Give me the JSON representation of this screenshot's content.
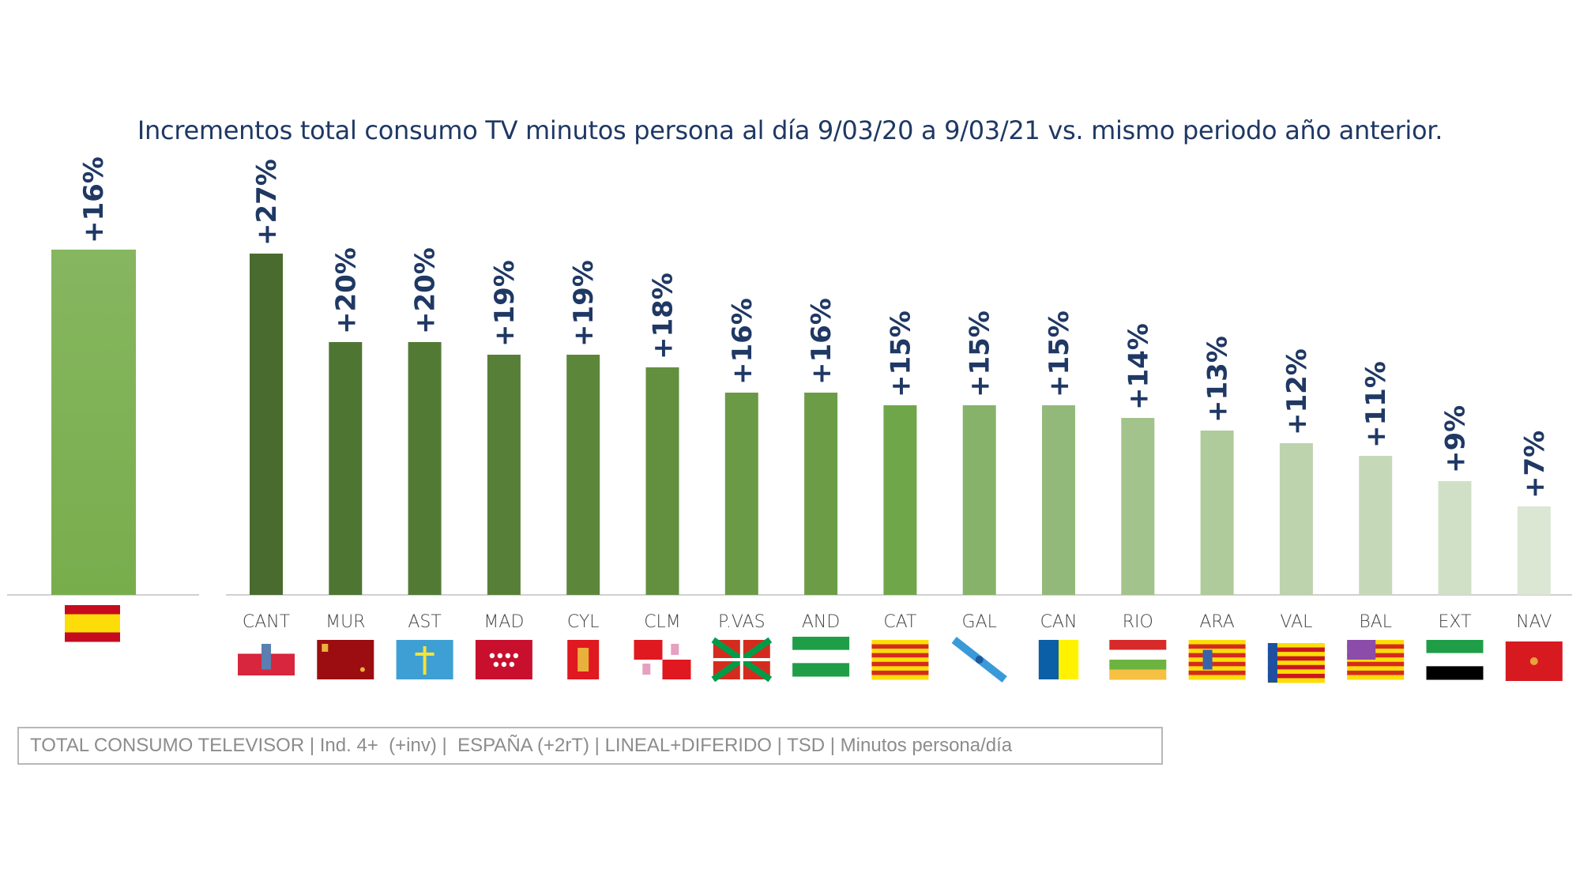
{
  "chart_data": {
    "type": "bar",
    "title": "Incrementos total consumo TV minutos persona al día 9/03/20 a 9/03/21 vs. mismo periodo año anterior.",
    "total": {
      "category": "ESPAÑA",
      "value": 16,
      "label": "+16%",
      "color": "#78ad4c"
    },
    "categories": [
      "CANT",
      "MUR",
      "AST",
      "MAD",
      "CYL",
      "CLM",
      "P.VAS",
      "AND",
      "CAT",
      "GAL",
      "CAN",
      "RIO",
      "ARA",
      "VAL",
      "BAL",
      "EXT",
      "NAV"
    ],
    "values": [
      27,
      20,
      20,
      19,
      19,
      18,
      16,
      16,
      15,
      15,
      15,
      14,
      13,
      12,
      11,
      9,
      7
    ],
    "labels": [
      "+27%",
      "+20%",
      "+20%",
      "+19%",
      "+19%",
      "+18%",
      "+16%",
      "+16%",
      "+15%",
      "+15%",
      "+15%",
      "+14%",
      "+13%",
      "+12%",
      "+11%",
      "+9%",
      "+7%"
    ],
    "colors": [
      "#4a6b2f",
      "#4f7532",
      "#527a34",
      "#577f37",
      "#5c873a",
      "#62903e",
      "#6a9a45",
      "#6d9c46",
      "#70a64a",
      "#87b26a",
      "#93b97a",
      "#a2c38b",
      "#afcb9b",
      "#bcd3ae",
      "#c5d9b9",
      "#d0e0c6",
      "#dbe6d3"
    ],
    "legend": "none",
    "grid": false
  },
  "footer": "TOTAL CONSUMO TELEVISOR | Ind. 4+  (+inv) |  ESPAÑA (+2rT) | LINEAL+DIFERIDO | TSD | Minutos persona/día"
}
